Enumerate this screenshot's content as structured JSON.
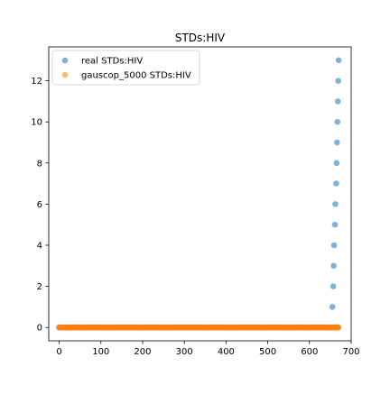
{
  "chart_data": {
    "type": "scatter",
    "title": "STDs:HIV",
    "xlabel": "",
    "ylabel": "",
    "xlim": [
      -25,
      700
    ],
    "ylim": [
      -0.65,
      13.65
    ],
    "xticks": [
      0,
      100,
      200,
      300,
      400,
      500,
      600,
      700
    ],
    "yticks": [
      0,
      2,
      4,
      6,
      8,
      10,
      12
    ],
    "grid": false,
    "legend_position": "top-left",
    "series": [
      {
        "name": "real STDs:HIV",
        "color": "#7fb2d5",
        "points": [
          [
            0,
            0
          ],
          [
            50,
            0
          ],
          [
            100,
            0
          ],
          [
            150,
            0
          ],
          [
            200,
            0
          ],
          [
            250,
            0
          ],
          [
            300,
            0
          ],
          [
            350,
            0
          ],
          [
            400,
            0
          ],
          [
            450,
            0
          ],
          [
            500,
            0
          ],
          [
            550,
            0
          ],
          [
            600,
            0
          ],
          [
            640,
            0
          ],
          [
            655,
            1
          ],
          [
            657,
            2
          ],
          [
            658,
            3
          ],
          [
            659,
            4
          ],
          [
            661,
            5
          ],
          [
            662,
            6
          ],
          [
            664,
            7
          ],
          [
            665,
            8
          ],
          [
            666,
            9
          ],
          [
            667,
            10
          ],
          [
            668,
            11
          ],
          [
            669,
            12
          ],
          [
            670,
            13
          ]
        ]
      },
      {
        "name": "gauscop_5000 STDs:HIV",
        "color": "#ff7f0e",
        "dense_zero_run": {
          "x_start": 0,
          "x_end": 670,
          "step": 1,
          "y": 0
        }
      }
    ]
  }
}
